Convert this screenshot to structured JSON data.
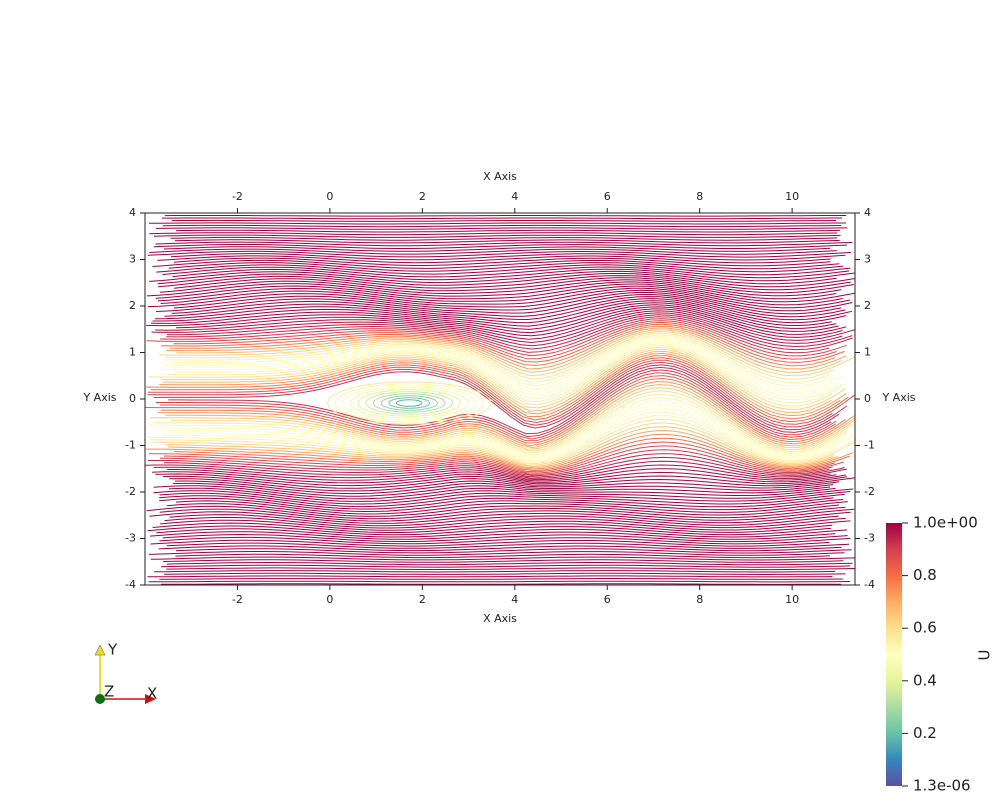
{
  "chart_data": {
    "type": "streamlines",
    "xlabel": "X Axis",
    "ylabel": "Y Axis",
    "xlim": [
      -4,
      11.36
    ],
    "ylim": [
      -4,
      4
    ],
    "xticks": [
      -2,
      0,
      2,
      4,
      6,
      8,
      10
    ],
    "yticks": [
      -4,
      -3,
      -2,
      -1,
      0,
      1,
      2,
      3,
      4
    ],
    "colorbar": {
      "label": "U",
      "clim": [
        1.3e-06,
        1.0
      ],
      "ticks": [
        {
          "value": 1.3e-06,
          "label": "1.3e-06"
        },
        0.2,
        0.4,
        0.6,
        0.8,
        {
          "value": 1.0,
          "label": "1.0e+00"
        }
      ],
      "colormap": [
        "#5e4fa2",
        "#3288bd",
        "#66c2a5",
        "#abdda4",
        "#e6f598",
        "#ffffbf",
        "#fee08b",
        "#fdae61",
        "#f46d43",
        "#d53e4f",
        "#9e0142"
      ]
    },
    "orientation_axes": {
      "x": "X",
      "y": "Y",
      "z": "Z"
    }
  }
}
